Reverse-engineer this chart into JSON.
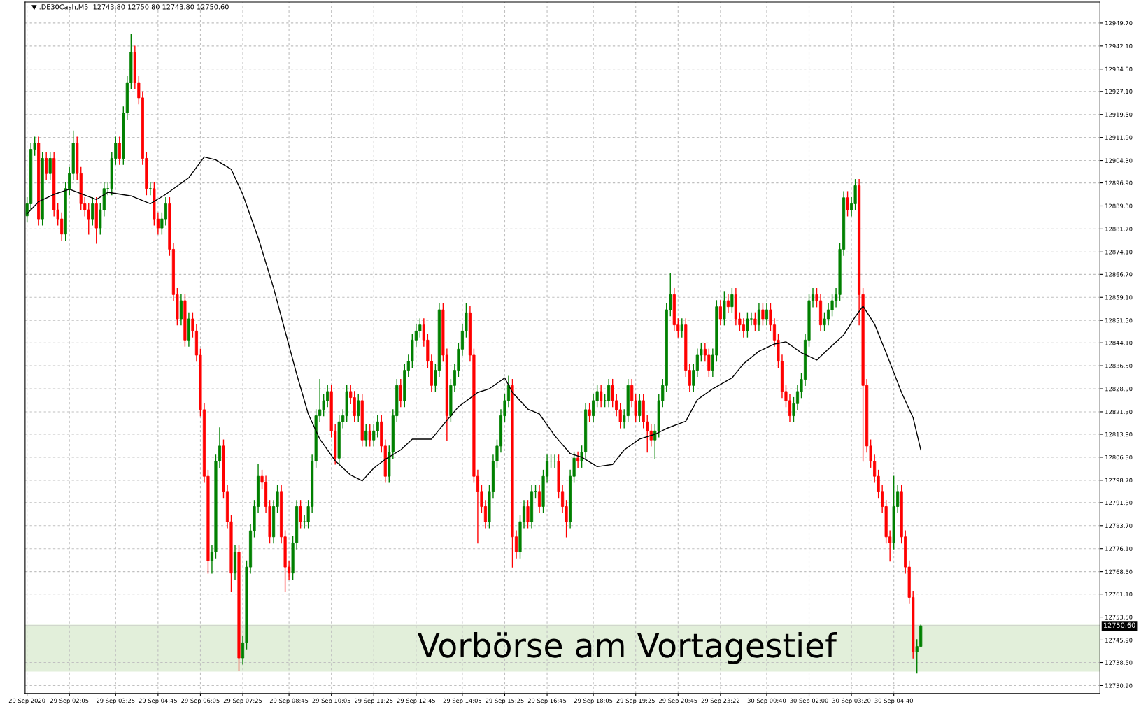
{
  "chart_data": {
    "type": "candlestick",
    "title": "▼ .DE30Cash,M5  12743.80 12750.80 12743.80 12750.60",
    "categories": [
      "29 Sep 2020",
      null,
      null,
      null,
      null,
      null,
      null,
      null,
      null,
      null,
      null,
      "29 Sep 02:05",
      null,
      null,
      null,
      null,
      null,
      null,
      null,
      null,
      null,
      null,
      null,
      "29 Sep 03:25",
      null,
      null,
      null,
      null,
      null,
      null,
      null,
      null,
      null,
      null,
      "29 Sep 04:45",
      null,
      null,
      null,
      null,
      null,
      null,
      null,
      null,
      null,
      null,
      "29 Sep 06:05",
      null,
      null,
      null,
      null,
      null,
      null,
      null,
      null,
      null,
      null,
      "29 Sep 07:25",
      null,
      null,
      null,
      null,
      null,
      null,
      null,
      null,
      null,
      null,
      null,
      "29 Sep 08:45",
      null,
      null,
      null,
      null,
      null,
      null,
      null,
      null,
      null,
      null,
      "29 Sep 10:05",
      null,
      null,
      null,
      null,
      null,
      null,
      null,
      null,
      null,
      null,
      "29 Sep 11:25",
      null,
      null,
      null,
      null,
      null,
      null,
      null,
      null,
      null,
      null,
      "29 Sep 12:45",
      null,
      null,
      null,
      null,
      null,
      null,
      null,
      null,
      null,
      null,
      null,
      "29 Sep 14:05",
      null,
      null,
      null,
      null,
      null,
      null,
      null,
      null,
      null,
      null,
      "29 Sep 15:25",
      null,
      null,
      null,
      null,
      null,
      null,
      null,
      null,
      null,
      null,
      "29 Sep 16:45",
      null,
      null,
      null,
      null,
      null,
      null,
      null,
      null,
      null,
      null,
      null,
      "29 Sep 18:05",
      null,
      null,
      null,
      null,
      null,
      null,
      null,
      null,
      null,
      null,
      "29 Sep 19:25",
      null,
      null,
      null,
      null,
      null,
      null,
      null,
      null,
      null,
      null,
      "29 Sep 20:45",
      null,
      null,
      null,
      null,
      null,
      null,
      null,
      null,
      null,
      null,
      "29 Sep 23:22",
      null,
      null,
      null,
      null,
      null,
      null,
      null,
      null,
      null,
      null,
      null,
      "30 Sep 00:40",
      null,
      null,
      null,
      null,
      null,
      null,
      null,
      null,
      null,
      null,
      "30 Sep 02:00",
      null,
      null,
      null,
      null,
      null,
      null,
      null,
      null,
      null,
      null,
      "30 Sep 03:20",
      null,
      null,
      null,
      null,
      null,
      null,
      null,
      null,
      null,
      null,
      "30 Sep 04:40",
      null,
      null,
      null,
      null,
      null,
      null,
      null,
      null,
      null,
      null,
      null,
      null,
      null,
      null,
      null,
      null,
      null,
      null,
      null,
      null,
      null,
      null,
      null,
      null,
      null,
      null,
      null,
      null,
      null,
      null,
      null,
      null,
      null,
      null,
      null,
      null,
      null,
      null,
      null,
      null,
      null,
      null,
      null,
      null,
      null,
      null,
      null,
      null,
      null,
      null,
      null,
      null,
      null
    ],
    "ohlc": [
      [
        12886,
        12892,
        12884,
        12890
      ],
      [
        12890,
        12910,
        12888,
        12908
      ],
      [
        12908,
        12912,
        12906,
        12910
      ],
      [
        12910,
        12912,
        12883,
        12885
      ],
      [
        12885,
        12907,
        12883,
        12905
      ],
      [
        12905,
        12907,
        12898,
        12900
      ],
      [
        12900,
        12907,
        12898,
        12905
      ],
      [
        12905,
        12907,
        12886,
        12888
      ],
      [
        12888,
        12890,
        12883,
        12885
      ],
      [
        12885,
        12887,
        12878,
        12880
      ],
      [
        12880,
        12897,
        12878,
        12895
      ],
      [
        12895,
        12902,
        12893,
        12900
      ],
      [
        12900,
        12914,
        12898,
        12910
      ],
      [
        12910,
        12912,
        12898,
        12900
      ],
      [
        12900,
        12902,
        12888,
        12890
      ],
      [
        12890,
        12892,
        12886,
        12888
      ],
      [
        12888,
        12890,
        12880,
        12885
      ],
      [
        12885,
        12892,
        12883,
        12890
      ],
      [
        12890,
        12892,
        12877,
        12882
      ],
      [
        12882,
        12890,
        12880,
        12888
      ],
      [
        12888,
        12897,
        12886,
        12895
      ],
      [
        12895,
        12897,
        12893,
        12895
      ],
      [
        12895,
        12907,
        12893,
        12905
      ],
      [
        12905,
        12912,
        12903,
        12910
      ],
      [
        12910,
        12912,
        12903,
        12905
      ],
      [
        12905,
        12922,
        12903,
        12920
      ],
      [
        12920,
        12932,
        12918,
        12930
      ],
      [
        12930,
        12946,
        12928,
        12940
      ],
      [
        12940,
        12942,
        12928,
        12930
      ],
      [
        12930,
        12932,
        12923,
        12925
      ],
      [
        12925,
        12927,
        12903,
        12905
      ],
      [
        12905,
        12907,
        12893,
        12895
      ],
      [
        12895,
        12897,
        12893,
        12895
      ],
      [
        12895,
        12897,
        12883,
        12885
      ],
      [
        12885,
        12887,
        12880,
        12882
      ],
      [
        12882,
        12887,
        12880,
        12885
      ],
      [
        12885,
        12892,
        12883,
        12890
      ],
      [
        12890,
        12892,
        12873,
        12875
      ],
      [
        12875,
        12877,
        12858,
        12860
      ],
      [
        12860,
        12862,
        12850,
        12852
      ],
      [
        12852,
        12860,
        12850,
        12858
      ],
      [
        12858,
        12860,
        12843,
        12845
      ],
      [
        12845,
        12854,
        12843,
        12852
      ],
      [
        12852,
        12854,
        12846,
        12848
      ],
      [
        12848,
        12850,
        12838,
        12840
      ],
      [
        12840,
        12842,
        12820,
        12822
      ],
      [
        12822,
        12824,
        12798,
        12800
      ],
      [
        12800,
        12802,
        12768,
        12772
      ],
      [
        12772,
        12777,
        12768,
        12775
      ],
      [
        12775,
        12807,
        12773,
        12805
      ],
      [
        12805,
        12816,
        12803,
        12810
      ],
      [
        12810,
        12812,
        12793,
        12795
      ],
      [
        12795,
        12797,
        12783,
        12785
      ],
      [
        12785,
        12787,
        12762,
        12768
      ],
      [
        12768,
        12777,
        12766,
        12775
      ],
      [
        12775,
        12777,
        12736,
        12740
      ],
      [
        12740,
        12747,
        12738,
        12745
      ],
      [
        12745,
        12772,
        12743,
        12770
      ],
      [
        12770,
        12784,
        12768,
        12782
      ],
      [
        12782,
        12792,
        12780,
        12790
      ],
      [
        12790,
        12804,
        12788,
        12800
      ],
      [
        12800,
        12802,
        12796,
        12798
      ],
      [
        12798,
        12800,
        12788,
        12790
      ],
      [
        12790,
        12792,
        12778,
        12780
      ],
      [
        12780,
        12792,
        12778,
        12790
      ],
      [
        12790,
        12797,
        12788,
        12795
      ],
      [
        12795,
        12797,
        12778,
        12780
      ],
      [
        12780,
        12782,
        12762,
        12770
      ],
      [
        12770,
        12772,
        12766,
        12768
      ],
      [
        12768,
        12780,
        12766,
        12778
      ],
      [
        12778,
        12792,
        12776,
        12790
      ],
      [
        12790,
        12792,
        12783,
        12785
      ],
      [
        12785,
        12787,
        12783,
        12785
      ],
      [
        12785,
        12792,
        12783,
        12790
      ],
      [
        12790,
        12807,
        12788,
        12805
      ],
      [
        12805,
        12822,
        12803,
        12820
      ],
      [
        12820,
        12832,
        12818,
        12822
      ],
      [
        12822,
        12827,
        12820,
        12825
      ],
      [
        12825,
        12830,
        12823,
        12828
      ],
      [
        12828,
        12830,
        12813,
        12815
      ],
      [
        12815,
        12817,
        12804,
        12806
      ],
      [
        12806,
        12820,
        12804,
        12818
      ],
      [
        12818,
        12822,
        12816,
        12820
      ],
      [
        12820,
        12830,
        12818,
        12828
      ],
      [
        12828,
        12830,
        12824,
        12826
      ],
      [
        12826,
        12828,
        12818,
        12820
      ],
      [
        12820,
        12827,
        12818,
        12825
      ],
      [
        12825,
        12827,
        12810,
        12812
      ],
      [
        12812,
        12817,
        12810,
        12815
      ],
      [
        12815,
        12817,
        12810,
        12812
      ],
      [
        12812,
        12817,
        12810,
        12815
      ],
      [
        12815,
        12820,
        12813,
        12818
      ],
      [
        12818,
        12820,
        12808,
        12810
      ],
      [
        12810,
        12812,
        12798,
        12800
      ],
      [
        12800,
        12810,
        12798,
        12808
      ],
      [
        12808,
        12822,
        12806,
        12820
      ],
      [
        12820,
        12832,
        12818,
        12830
      ],
      [
        12830,
        12832,
        12823,
        12825
      ],
      [
        12825,
        12837,
        12823,
        12835
      ],
      [
        12835,
        12840,
        12833,
        12838
      ],
      [
        12838,
        12847,
        12836,
        12845
      ],
      [
        12845,
        12850,
        12843,
        12848
      ],
      [
        12848,
        12852,
        12846,
        12850
      ],
      [
        12850,
        12852,
        12843,
        12845
      ],
      [
        12845,
        12847,
        12836,
        12838
      ],
      [
        12838,
        12840,
        12828,
        12830
      ],
      [
        12830,
        12837,
        12828,
        12835
      ],
      [
        12835,
        12857,
        12833,
        12855
      ],
      [
        12855,
        12857,
        12838,
        12840
      ],
      [
        12840,
        12842,
        12812,
        12820
      ],
      [
        12820,
        12832,
        12818,
        12830
      ],
      [
        12830,
        12837,
        12828,
        12835
      ],
      [
        12835,
        12844,
        12833,
        12842
      ],
      [
        12842,
        12850,
        12840,
        12848
      ],
      [
        12848,
        12857,
        12846,
        12854
      ],
      [
        12854,
        12856,
        12838,
        12840
      ],
      [
        12840,
        12842,
        12798,
        12800
      ],
      [
        12800,
        12802,
        12778,
        12795
      ],
      [
        12795,
        12797,
        12788,
        12790
      ],
      [
        12790,
        12792,
        12783,
        12785
      ],
      [
        12785,
        12797,
        12783,
        12795
      ],
      [
        12795,
        12807,
        12793,
        12805
      ],
      [
        12805,
        12812,
        12803,
        12810
      ],
      [
        12810,
        12822,
        12808,
        12820
      ],
      [
        12820,
        12827,
        12818,
        12825
      ],
      [
        12825,
        12833,
        12823,
        12830
      ],
      [
        12830,
        12832,
        12770,
        12780
      ],
      [
        12780,
        12782,
        12773,
        12775
      ],
      [
        12775,
        12787,
        12773,
        12785
      ],
      [
        12785,
        12792,
        12783,
        12790
      ],
      [
        12790,
        12792,
        12783,
        12785
      ],
      [
        12785,
        12797,
        12783,
        12795
      ],
      [
        12795,
        12797,
        12793,
        12795
      ],
      [
        12795,
        12797,
        12788,
        12790
      ],
      [
        12790,
        12802,
        12788,
        12800
      ],
      [
        12800,
        12807,
        12798,
        12805
      ],
      [
        12805,
        12807,
        12803,
        12805
      ],
      [
        12805,
        12807,
        12803,
        12805
      ],
      [
        12805,
        12807,
        12793,
        12795
      ],
      [
        12795,
        12797,
        12788,
        12790
      ],
      [
        12790,
        12792,
        12780,
        12785
      ],
      [
        12785,
        12802,
        12783,
        12800
      ],
      [
        12800,
        12808,
        12798,
        12806
      ],
      [
        12806,
        12808,
        12803,
        12805
      ],
      [
        12805,
        12810,
        12803,
        12808
      ],
      [
        12808,
        12824,
        12806,
        12822
      ],
      [
        12822,
        12824,
        12818,
        12820
      ],
      [
        12820,
        12827,
        12818,
        12825
      ],
      [
        12825,
        12830,
        12823,
        12828
      ],
      [
        12828,
        12830,
        12823,
        12825
      ],
      [
        12825,
        12827,
        12823,
        12825
      ],
      [
        12825,
        12832,
        12823,
        12830
      ],
      [
        12830,
        12832,
        12823,
        12825
      ],
      [
        12825,
        12827,
        12820,
        12822
      ],
      [
        12822,
        12824,
        12816,
        12818
      ],
      [
        12818,
        12822,
        12816,
        12820
      ],
      [
        12820,
        12832,
        12818,
        12830
      ],
      [
        12830,
        12832,
        12823,
        12825
      ],
      [
        12825,
        12827,
        12818,
        12820
      ],
      [
        12820,
        12827,
        12818,
        12825
      ],
      [
        12825,
        12827,
        12816,
        12818
      ],
      [
        12818,
        12820,
        12808,
        12815
      ],
      [
        12815,
        12817,
        12810,
        12812
      ],
      [
        12812,
        12817,
        12806,
        12815
      ],
      [
        12815,
        12827,
        12813,
        12825
      ],
      [
        12825,
        12832,
        12823,
        12830
      ],
      [
        12830,
        12857,
        12828,
        12855
      ],
      [
        12855,
        12867,
        12853,
        12860
      ],
      [
        12860,
        12862,
        12848,
        12850
      ],
      [
        12850,
        12852,
        12846,
        12848
      ],
      [
        12848,
        12852,
        12846,
        12850
      ],
      [
        12850,
        12852,
        12833,
        12835
      ],
      [
        12835,
        12837,
        12828,
        12830
      ],
      [
        12830,
        12837,
        12828,
        12835
      ],
      [
        12835,
        12842,
        12833,
        12840
      ],
      [
        12840,
        12844,
        12838,
        12842
      ],
      [
        12842,
        12844,
        12838,
        12840
      ],
      [
        12840,
        12842,
        12833,
        12835
      ],
      [
        12835,
        12842,
        12833,
        12840
      ],
      [
        12840,
        12858,
        12838,
        12856
      ],
      [
        12856,
        12858,
        12850,
        12852
      ],
      [
        12852,
        12861,
        12850,
        12858
      ],
      [
        12858,
        12860,
        12854,
        12856
      ],
      [
        12856,
        12862,
        12854,
        12860
      ],
      [
        12860,
        12862,
        12850,
        12852
      ],
      [
        12852,
        12854,
        12848,
        12850
      ],
      [
        12850,
        12852,
        12846,
        12848
      ],
      [
        12848,
        12854,
        12846,
        12852
      ],
      [
        12852,
        12854,
        12850,
        12852
      ],
      [
        12852,
        12854,
        12848,
        12850
      ],
      [
        12850,
        12857,
        12848,
        12855
      ],
      [
        12855,
        12857,
        12850,
        12852
      ],
      [
        12852,
        12857,
        12850,
        12855
      ],
      [
        12855,
        12857,
        12848,
        12850
      ],
      [
        12850,
        12852,
        12843,
        12845
      ],
      [
        12845,
        12847,
        12836,
        12838
      ],
      [
        12838,
        12840,
        12826,
        12828
      ],
      [
        12828,
        12830,
        12823,
        12825
      ],
      [
        12825,
        12827,
        12818,
        12820
      ],
      [
        12820,
        12826,
        12818,
        12824
      ],
      [
        12824,
        12830,
        12822,
        12828
      ],
      [
        12828,
        12834,
        12826,
        12832
      ],
      [
        12832,
        12847,
        12830,
        12845
      ],
      [
        12845,
        12860,
        12843,
        12858
      ],
      [
        12858,
        12862,
        12856,
        12860
      ],
      [
        12860,
        12862,
        12856,
        12858
      ],
      [
        12858,
        12860,
        12848,
        12850
      ],
      [
        12850,
        12854,
        12848,
        12852
      ],
      [
        12852,
        12857,
        12850,
        12855
      ],
      [
        12855,
        12860,
        12853,
        12858
      ],
      [
        12858,
        12862,
        12856,
        12860
      ],
      [
        12860,
        12877,
        12858,
        12875
      ],
      [
        12875,
        12894,
        12873,
        12892
      ],
      [
        12892,
        12894,
        12886,
        12888
      ],
      [
        12888,
        12892,
        12886,
        12890
      ],
      [
        12890,
        12898,
        12888,
        12896
      ],
      [
        12896,
        12898,
        12850,
        12860
      ],
      [
        12860,
        12862,
        12805,
        12830
      ],
      [
        12830,
        12832,
        12808,
        12810
      ],
      [
        12810,
        12812,
        12803,
        12805
      ],
      [
        12805,
        12807,
        12798,
        12800
      ],
      [
        12800,
        12802,
        12793,
        12795
      ],
      [
        12795,
        12797,
        12788,
        12790
      ],
      [
        12790,
        12792,
        12778,
        12780
      ],
      [
        12780,
        12782,
        12772,
        12778
      ],
      [
        12778,
        12800,
        12776,
        12790
      ],
      [
        12790,
        12797,
        12788,
        12795
      ],
      [
        12795,
        12797,
        12778,
        12780
      ],
      [
        12780,
        12782,
        12768,
        12770
      ],
      [
        12770,
        12772,
        12758,
        12760
      ],
      [
        12760,
        12762,
        12740,
        12742
      ],
      [
        12742,
        12746,
        12735,
        12743.8
      ],
      [
        12743.8,
        12750.8,
        12743.8,
        12750.6
      ],
      null,
      null,
      null,
      null,
      null,
      null,
      null,
      null,
      null,
      null,
      null,
      null,
      null,
      null,
      null,
      null,
      null,
      null,
      null,
      null,
      null,
      null,
      null,
      null,
      null,
      null,
      null,
      null,
      null,
      null,
      null,
      null,
      null,
      null,
      null,
      null,
      null,
      null,
      null,
      null,
      null,
      null,
      null,
      null,
      null,
      null
    ],
    "colors": [
      "#008000",
      "#008000",
      "#008000",
      "#ff0000",
      "#008000",
      "#ff0000",
      "#008000",
      "#ff0000",
      "#ff0000",
      "#ff0000",
      "#008000",
      "#008000",
      "#008000",
      "#ff0000",
      "#ff0000",
      "#ff0000",
      "#ff0000",
      "#008000",
      "#ff0000",
      "#008000",
      "#008000",
      "#008000",
      "#008000",
      "#008000",
      "#ff0000",
      "#008000",
      "#008000",
      "#008000",
      "#ff0000",
      "#ff0000",
      "#ff0000",
      "#ff0000",
      "#008000",
      "#ff0000",
      "#ff0000",
      "#008000",
      "#008000",
      "#ff0000",
      "#ff0000",
      "#ff0000",
      "#008000",
      "#ff0000",
      "#008000",
      "#ff0000",
      "#ff0000",
      "#ff0000",
      "#ff0000",
      "#ff0000",
      "#008000",
      "#008000",
      "#008000",
      "#ff0000",
      "#ff0000",
      "#ff0000",
      "#008000",
      "#ff0000",
      "#008000",
      "#008000",
      "#008000",
      "#008000",
      "#008000",
      "#ff0000",
      "#ff0000",
      "#ff0000",
      "#008000",
      "#008000",
      "#ff0000",
      "#ff0000",
      "#ff0000",
      "#008000",
      "#008000",
      "#ff0000",
      "#008000",
      "#008000",
      "#008000",
      "#008000",
      "#008000",
      "#008000",
      "#008000",
      "#ff0000",
      "#ff0000",
      "#008000",
      "#008000",
      "#008000",
      "#ff0000",
      "#ff0000",
      "#008000",
      "#ff0000",
      "#008000",
      "#ff0000",
      "#008000",
      "#008000",
      "#ff0000",
      "#ff0000",
      "#008000",
      "#008000",
      "#008000",
      "#ff0000",
      "#008000",
      "#008000",
      "#008000",
      "#008000",
      "#008000",
      "#ff0000",
      "#ff0000",
      "#ff0000",
      "#008000",
      "#008000",
      "#ff0000",
      "#ff0000",
      "#008000",
      "#008000",
      "#008000",
      "#008000",
      "#008000",
      "#ff0000",
      "#ff0000",
      "#ff0000",
      "#ff0000",
      "#ff0000",
      "#008000",
      "#008000",
      "#008000",
      "#008000",
      "#008000",
      "#008000",
      "#ff0000",
      "#ff0000",
      "#008000",
      "#008000",
      "#ff0000",
      "#008000",
      "#008000",
      "#ff0000",
      "#008000",
      "#008000",
      "#008000",
      "#008000",
      "#ff0000",
      "#ff0000",
      "#ff0000",
      "#008000",
      "#008000",
      "#ff0000",
      "#008000",
      "#008000",
      "#ff0000",
      "#008000",
      "#008000",
      "#ff0000",
      "#008000",
      "#008000",
      "#ff0000",
      "#ff0000",
      "#ff0000",
      "#008000",
      "#008000",
      "#ff0000",
      "#ff0000",
      "#008000",
      "#ff0000",
      "#ff0000",
      "#ff0000",
      "#008000",
      "#008000",
      "#008000",
      "#008000",
      "#008000",
      "#ff0000",
      "#ff0000",
      "#008000",
      "#ff0000",
      "#ff0000",
      "#008000",
      "#008000",
      "#008000",
      "#ff0000",
      "#ff0000",
      "#008000",
      "#008000",
      "#ff0000",
      "#008000",
      "#ff0000",
      "#008000",
      "#ff0000",
      "#ff0000",
      "#ff0000",
      "#008000",
      "#008000",
      "#ff0000",
      "#008000",
      "#ff0000",
      "#008000",
      "#ff0000",
      "#ff0000",
      "#ff0000",
      "#ff0000",
      "#ff0000",
      "#ff0000",
      "#008000",
      "#008000",
      "#008000",
      "#008000",
      "#008000",
      "#008000",
      "#ff0000",
      "#ff0000",
      "#008000",
      "#008000",
      "#008000",
      "#008000",
      "#008000",
      "#008000",
      "#ff0000",
      "#008000",
      "#008000",
      "#ff0000",
      "#ff0000",
      "#ff0000",
      "#ff0000",
      "#ff0000",
      "#ff0000",
      "#ff0000",
      "#ff0000",
      "#ff0000",
      "#008000",
      "#008000",
      "#ff0000",
      "#ff0000",
      "#ff0000",
      "#ff0000",
      "#008000",
      "#008000",
      null,
      null,
      null,
      null,
      null,
      null,
      null,
      null,
      null,
      null,
      null,
      null,
      null,
      null,
      null,
      null,
      null,
      null,
      null,
      null,
      null,
      null,
      null,
      null,
      null,
      null,
      null,
      null,
      null,
      null,
      null,
      null,
      null,
      null,
      null,
      null,
      null,
      null,
      null,
      null,
      null,
      null,
      null,
      null,
      null,
      null
    ],
    "series": [
      {
        "type": "line",
        "color": "#000000",
        "values": [
          12886.7,
          null,
          null,
          12890.7,
          null,
          null,
          null,
          12893.1,
          null,
          null,
          null,
          12894.8,
          null,
          null,
          null,
          null,
          null,
          null,
          12891.4,
          null,
          null,
          12893.8,
          null,
          null,
          null,
          null,
          null,
          12892.6,
          null,
          null,
          null,
          null,
          12890.0,
          null,
          null,
          null,
          12893.1,
          null,
          null,
          null,
          null,
          null,
          12898.6,
          null,
          null,
          null,
          12905.5,
          null,
          null,
          12904.5,
          null,
          null,
          null,
          12901.4,
          null,
          null,
          12893.1,
          null,
          null,
          null,
          12878.8,
          null,
          null,
          null,
          12862.2,
          null,
          null,
          12847.9,
          null,
          null,
          12833.7,
          null,
          null,
          12820.6,
          null,
          null,
          12812.3,
          null,
          null,
          null,
          12805.1,
          null,
          null,
          null,
          12800.4,
          null,
          null,
          12798.5,
          null,
          null,
          12802.7,
          null,
          null,
          12805.6,
          null,
          null,
          null,
          12808.7,
          null,
          null,
          12812.3,
          null,
          null,
          null,
          null,
          12812.3,
          null,
          null,
          12817.0,
          null,
          null,
          null,
          12823.0,
          null,
          null,
          null,
          null,
          12827.7,
          null,
          null,
          12828.9,
          null,
          null,
          null,
          12832.5,
          null,
          12827.7,
          null,
          null,
          null,
          12822.2,
          null,
          null,
          12820.6,
          null,
          null,
          null,
          12813.4,
          null,
          null,
          null,
          12807.5,
          null,
          null,
          12806.3,
          null,
          null,
          null,
          12803.2,
          null,
          null,
          null,
          12803.9,
          null,
          null,
          12808.7,
          null,
          null,
          null,
          12812.3,
          null,
          null,
          null,
          12813.9,
          null,
          null,
          12815.8,
          null,
          null,
          null,
          null,
          12818.2,
          null,
          null,
          12825.3,
          null,
          null,
          null,
          12828.9,
          null,
          null,
          null,
          null,
          12832.5,
          null,
          null,
          12837.2,
          null,
          null,
          null,
          12841.3,
          null,
          null,
          null,
          12843.7,
          null,
          null,
          12844.4,
          null,
          null,
          null,
          12840.8,
          null,
          null,
          null,
          12838.4,
          null,
          null,
          12842.0,
          null,
          null,
          null,
          12846.7,
          null,
          null,
          12852.7,
          null,
          12856.2,
          null,
          null,
          12850.3,
          null,
          null,
          12840.8,
          null,
          null,
          null,
          12827.7,
          null,
          null,
          12819.4,
          null,
          12808.7,
          null,
          null,
          null,
          null,
          null,
          null,
          null,
          null,
          null,
          null,
          null,
          null,
          null,
          null,
          null,
          null,
          null,
          null,
          null,
          null,
          null,
          null,
          null,
          null,
          null,
          null,
          null,
          null,
          null,
          null,
          null,
          null,
          null,
          null,
          null,
          null,
          null,
          null,
          null,
          null,
          null,
          null,
          null,
          null,
          null,
          null
        ]
      }
    ],
    "ylim": [
      12728.3,
      12956.6
    ],
    "yticks": [
      {
        "value": 12949.7,
        "label": "12949.70"
      },
      {
        "value": 12942.1,
        "label": "12942.10"
      },
      {
        "value": 12934.5,
        "label": "12934.50"
      },
      {
        "value": 12927.1,
        "label": "12927.10"
      },
      {
        "value": 12919.5,
        "label": "12919.50"
      },
      {
        "value": 12911.9,
        "label": "12911.90"
      },
      {
        "value": 12904.3,
        "label": "12904.30"
      },
      {
        "value": 12896.9,
        "label": "12896.90"
      },
      {
        "value": 12889.3,
        "label": "12889.30"
      },
      {
        "value": 12881.7,
        "label": "12881.70"
      },
      {
        "value": 12874.1,
        "label": "12874.10"
      },
      {
        "value": 12866.7,
        "label": "12866.70"
      },
      {
        "value": 12859.1,
        "label": "12859.10"
      },
      {
        "value": 12851.5,
        "label": "12851.50"
      },
      {
        "value": 12844.1,
        "label": "12844.10"
      },
      {
        "value": 12836.5,
        "label": "12836.50"
      },
      {
        "value": 12828.9,
        "label": "12828.90"
      },
      {
        "value": 12821.3,
        "label": "12821.30"
      },
      {
        "value": 12813.9,
        "label": "12813.90"
      },
      {
        "value": 12806.3,
        "label": "12806.30"
      },
      {
        "value": 12798.7,
        "label": "12798.70"
      },
      {
        "value": 12791.3,
        "label": "12791.30"
      },
      {
        "value": 12783.7,
        "label": "12783.70"
      },
      {
        "value": 12776.1,
        "label": "12776.10"
      },
      {
        "value": 12768.5,
        "label": "12768.50"
      },
      {
        "value": 12761.1,
        "label": "12761.10"
      },
      {
        "value": 12753.5,
        "label": "12753.50"
      },
      {
        "value": 12745.9,
        "label": "12745.90"
      },
      {
        "value": 12738.5,
        "label": "12738.50"
      },
      {
        "value": 12730.9,
        "label": "12730.90"
      }
    ],
    "grid": true,
    "bands": [
      {
        "axis": "y",
        "from": 12735.5,
        "to": 12751.0,
        "label": "Vorbörse am Vortagestief",
        "color": "#e2efda"
      }
    ],
    "ref_lines": [
      {
        "axis": "y",
        "value": 12750.6,
        "label": "12750.60",
        "color": "#c0c0c0"
      }
    ]
  }
}
